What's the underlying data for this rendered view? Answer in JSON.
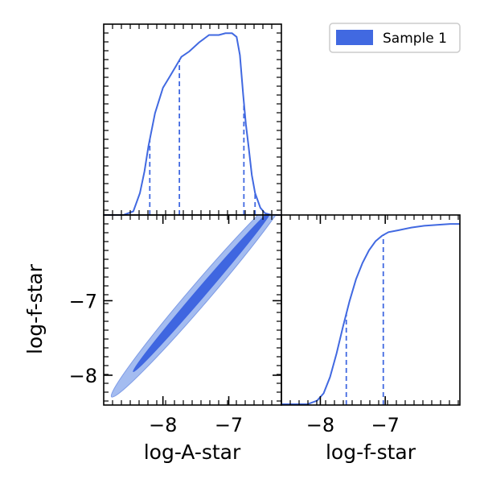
{
  "colors": {
    "series": "#4169e1",
    "contour_outer": "#a4bcf0",
    "contour_inner": "#3f66e0",
    "axis": "#000000",
    "legend_border": "#cccccc"
  },
  "legend": {
    "label": "Sample 1",
    "placement": "top-right"
  },
  "chart_data": [
    {
      "id": "marginal-log-a-star",
      "type": "line",
      "panel": "top-left",
      "title": "",
      "xlabel": "",
      "ylabel": "",
      "xlim": [
        -8.9,
        -6.2
      ],
      "ylim": [
        0,
        1.05
      ],
      "x": [
        -8.9,
        -8.6,
        -8.45,
        -8.35,
        -8.28,
        -8.22,
        -8.12,
        -8.0,
        -7.9,
        -7.8,
        -7.72,
        -7.6,
        -7.45,
        -7.3,
        -7.15,
        -7.05,
        -6.95,
        -6.88,
        -6.83,
        -6.78,
        -6.74,
        -6.7,
        -6.65,
        -6.6,
        -6.52,
        -6.45,
        -6.35,
        -6.2
      ],
      "y": [
        0.0,
        0.0,
        0.02,
        0.12,
        0.24,
        0.38,
        0.56,
        0.7,
        0.76,
        0.82,
        0.87,
        0.9,
        0.95,
        0.99,
        0.99,
        1.0,
        1.0,
        0.98,
        0.88,
        0.66,
        0.5,
        0.38,
        0.22,
        0.12,
        0.04,
        0.01,
        0.0,
        0.0
      ],
      "quantile_lines": [
        -8.2,
        -7.75,
        -6.77,
        -6.6
      ]
    },
    {
      "id": "joint-log-a-star-log-f-star",
      "type": "contour",
      "panel": "bottom-left",
      "title": "",
      "xlabel": "log-A-star",
      "ylabel": "log-f-star",
      "xlim": [
        -8.9,
        -6.2
      ],
      "ylim": [
        -8.4,
        -5.85
      ],
      "xticks": [
        "−8",
        "−7"
      ],
      "yticks": [
        "−7",
        "−8"
      ],
      "xtick_values": [
        -8,
        -7
      ],
      "ytick_values": [
        -7,
        -8
      ],
      "regions": [
        {
          "level": "outer",
          "center": [
            -7.42,
            -6.89
          ],
          "direction": [
            1,
            1.03
          ],
          "half_length": 1.36,
          "half_width": 0.1
        },
        {
          "level": "inner",
          "center": [
            -7.4,
            -6.87
          ],
          "direction": [
            1,
            1.03
          ],
          "half_length": 1.05,
          "half_width": 0.045
        }
      ]
    },
    {
      "id": "cdf-log-f-star",
      "type": "line",
      "panel": "bottom-right",
      "title": "",
      "xlabel": "log-f-star",
      "ylabel": "",
      "xlim": [
        -8.6,
        -5.85
      ],
      "ylim": [
        0,
        1.0
      ],
      "xticks": [
        "−8",
        "−7"
      ],
      "xtick_values": [
        -8,
        -7
      ],
      "x": [
        -8.6,
        -8.2,
        -8.05,
        -7.95,
        -7.85,
        -7.75,
        -7.65,
        -7.55,
        -7.45,
        -7.35,
        -7.25,
        -7.15,
        -7.05,
        -6.95,
        -6.8,
        -6.6,
        -6.4,
        -6.2,
        -6.0,
        -5.85
      ],
      "y": [
        0.0,
        0.0,
        0.02,
        0.06,
        0.15,
        0.28,
        0.43,
        0.57,
        0.69,
        0.78,
        0.85,
        0.9,
        0.93,
        0.95,
        0.96,
        0.975,
        0.985,
        0.99,
        0.995,
        0.995
      ],
      "quantile_lines": [
        -7.6,
        -7.03
      ]
    }
  ]
}
